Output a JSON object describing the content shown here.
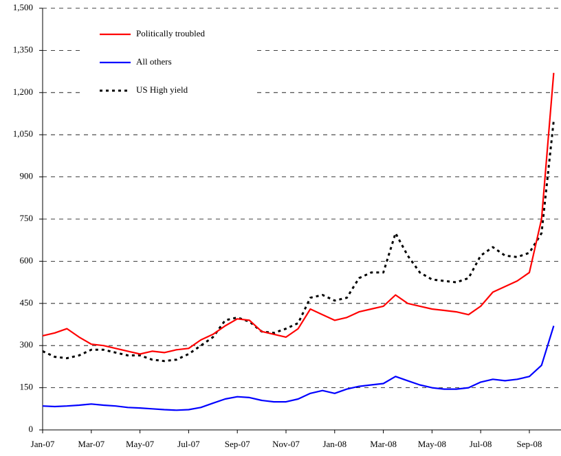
{
  "chart_data": {
    "type": "line",
    "categories": [
      "Jan-07",
      null,
      null,
      null,
      "Mar-07",
      null,
      null,
      null,
      "May-07",
      null,
      null,
      null,
      "Jul-07",
      null,
      null,
      null,
      "Sep-07",
      null,
      null,
      null,
      "Nov-07",
      null,
      null,
      null,
      "Jan-08",
      null,
      null,
      null,
      "Mar-08",
      null,
      null,
      null,
      "May-08",
      null,
      null,
      null,
      "Jul-08",
      null,
      null,
      null,
      "Sep-08",
      null,
      null
    ],
    "series": [
      {
        "name": "Politically troubled",
        "color": "#ff0000",
        "linestyle": "solid",
        "values": [
          335,
          345,
          360,
          330,
          305,
          300,
          290,
          280,
          270,
          280,
          275,
          285,
          290,
          320,
          340,
          370,
          395,
          390,
          350,
          340,
          330,
          360,
          430,
          410,
          390,
          400,
          420,
          430,
          440,
          480,
          450,
          440,
          430,
          425,
          420,
          410,
          440,
          490,
          510,
          530,
          560,
          750,
          1270
        ]
      },
      {
        "name": "All others",
        "color": "#0000ff",
        "linestyle": "solid",
        "values": [
          85,
          83,
          85,
          88,
          92,
          88,
          85,
          80,
          78,
          75,
          72,
          70,
          72,
          80,
          95,
          110,
          118,
          115,
          105,
          100,
          100,
          110,
          130,
          140,
          130,
          145,
          155,
          160,
          165,
          190,
          175,
          160,
          150,
          145,
          145,
          150,
          170,
          180,
          175,
          180,
          190,
          230,
          370
        ]
      },
      {
        "name": "US High yield",
        "color": "#000000",
        "linestyle": "dotted",
        "values": [
          280,
          260,
          255,
          265,
          285,
          285,
          275,
          265,
          265,
          250,
          245,
          250,
          270,
          300,
          330,
          390,
          400,
          385,
          350,
          345,
          360,
          380,
          470,
          480,
          460,
          470,
          540,
          560,
          560,
          700,
          620,
          560,
          535,
          530,
          525,
          540,
          620,
          650,
          620,
          615,
          630,
          700,
          1100
        ]
      }
    ],
    "ylim": [
      0,
      1500
    ],
    "yticks": [
      0,
      150,
      300,
      450,
      600,
      750,
      900,
      {
        "value": 1050,
        "label": "1,050"
      },
      {
        "value": 1200,
        "label": "1,200"
      },
      {
        "value": 1350,
        "label": "1,350"
      },
      {
        "value": 1500,
        "label": "1,500"
      }
    ],
    "grid": true,
    "legend": "upper-left"
  }
}
